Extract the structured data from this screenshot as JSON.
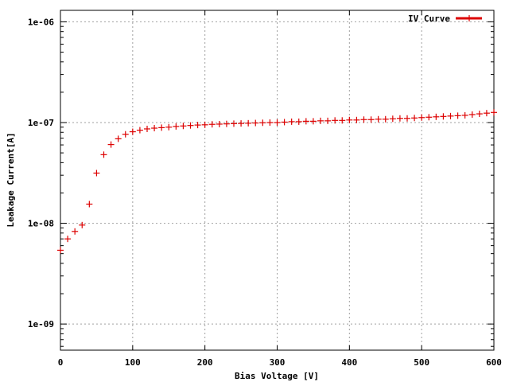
{
  "chart_data": {
    "type": "scatter",
    "xlabel": "Bias Voltage [V]",
    "ylabel": "Leakage Current[A]",
    "xlim": [
      0,
      600
    ],
    "ylim": [
      5.5e-10,
      1.3e-06
    ],
    "y_scale": "log",
    "grid": true,
    "legend_position": "top-right",
    "x_ticks": [
      "0",
      "100",
      "200",
      "300",
      "400",
      "500",
      "600"
    ],
    "y_ticks": [
      "1e-09",
      "1e-08",
      "1e-07",
      "1e-06"
    ],
    "series": [
      {
        "name": "IV Curve",
        "color": "#dd0000",
        "marker": "plus",
        "x": [
          0,
          10,
          20,
          30,
          40,
          50,
          60,
          70,
          80,
          90,
          100,
          110,
          120,
          130,
          140,
          150,
          160,
          170,
          180,
          190,
          200,
          210,
          220,
          230,
          240,
          250,
          260,
          270,
          280,
          290,
          300,
          310,
          320,
          330,
          340,
          350,
          360,
          370,
          380,
          390,
          400,
          410,
          420,
          430,
          440,
          450,
          460,
          470,
          480,
          490,
          500,
          510,
          520,
          530,
          540,
          550,
          560,
          570,
          580,
          590,
          600
        ],
        "y": [
          5.4e-09,
          7e-09,
          8.3e-09,
          9.6e-09,
          1.55e-08,
          3.15e-08,
          4.8e-08,
          6.05e-08,
          6.9e-08,
          7.65e-08,
          8.1e-08,
          8.4e-08,
          8.65e-08,
          8.8e-08,
          8.9e-08,
          9e-08,
          9.15e-08,
          9.25e-08,
          9.35e-08,
          9.45e-08,
          9.5e-08,
          9.6e-08,
          9.65e-08,
          9.7e-08,
          9.75e-08,
          9.8e-08,
          9.85e-08,
          9.9e-08,
          9.95e-08,
          1e-07,
          1e-07,
          1.01e-07,
          1.02e-07,
          1.02e-07,
          1.03e-07,
          1.03e-07,
          1.04e-07,
          1.04e-07,
          1.05e-07,
          1.05e-07,
          1.06e-07,
          1.06e-07,
          1.07e-07,
          1.07e-07,
          1.08e-07,
          1.08e-07,
          1.09e-07,
          1.1e-07,
          1.1e-07,
          1.11e-07,
          1.12e-07,
          1.13e-07,
          1.14e-07,
          1.15e-07,
          1.16e-07,
          1.17e-07,
          1.18e-07,
          1.2e-07,
          1.22e-07,
          1.24e-07,
          1.26e-07
        ]
      }
    ]
  }
}
